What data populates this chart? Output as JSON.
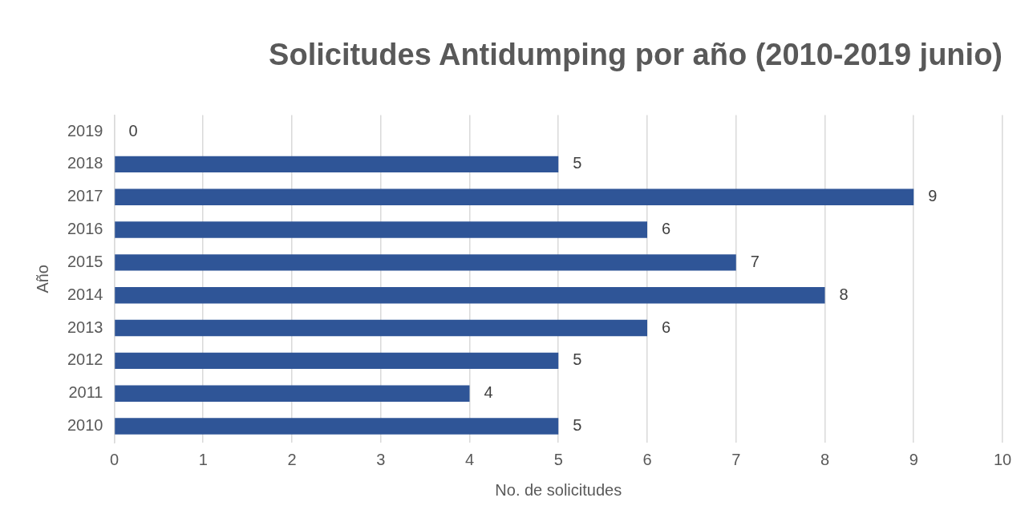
{
  "chart_data": {
    "type": "bar",
    "orientation": "horizontal",
    "title": "Solicitudes Antidumping por año (2010-2019 junio)",
    "xlabel": "No. de solicitudes",
    "ylabel": "Año",
    "categories": [
      "2019",
      "2018",
      "2017",
      "2016",
      "2015",
      "2014",
      "2013",
      "2012",
      "2011",
      "2010"
    ],
    "values": [
      0,
      5,
      9,
      6,
      7,
      8,
      6,
      5,
      4,
      5
    ],
    "color": "#2f5597",
    "xlim": [
      0,
      10
    ],
    "xticks": [
      0,
      1,
      2,
      3,
      4,
      5,
      6,
      7,
      8,
      9,
      10
    ],
    "grid": "x",
    "data_labels": true,
    "legend": false
  }
}
